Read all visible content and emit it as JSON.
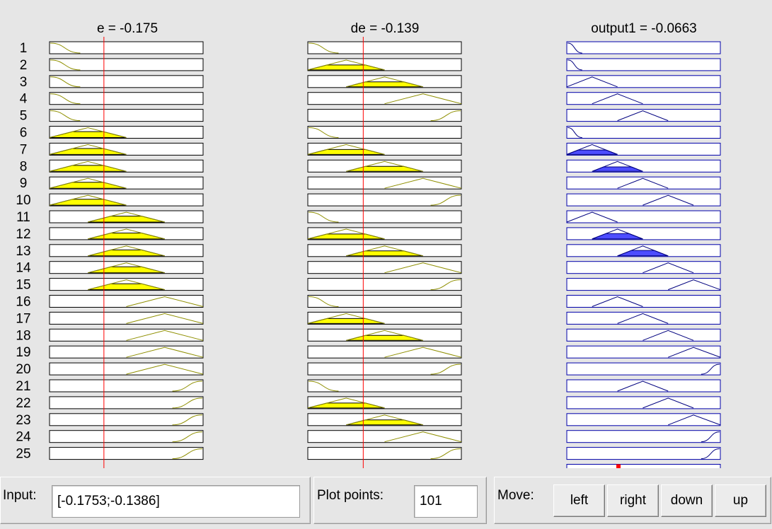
{
  "viewer": {
    "columns": [
      {
        "title": "e = -0.175",
        "kind": "input",
        "range": [
          -0.6,
          0.6
        ],
        "value": -0.175,
        "range_labels_partial": [
          "-0.6",
          "0.6"
        ]
      },
      {
        "title": "de = -0.139",
        "kind": "input",
        "range": [
          -0.5,
          0.5
        ],
        "value": -0.139,
        "range_labels_partial": [
          "-0.5",
          "0.5"
        ]
      },
      {
        "title": "output1 = -0.0663",
        "kind": "output",
        "value": -0.0663
      }
    ],
    "rule_numbers": [
      "1",
      "2",
      "3",
      "4",
      "5",
      "6",
      "7",
      "8",
      "9",
      "10",
      "11",
      "12",
      "13",
      "14",
      "15",
      "16",
      "17",
      "18",
      "19",
      "20",
      "21",
      "22",
      "23",
      "24",
      "25"
    ],
    "rules": [
      {
        "e": "zmf1",
        "de": "zmf1",
        "out": "z1",
        "fire": 0.0
      },
      {
        "e": "zmf1",
        "de": "tri2",
        "out": "z1",
        "fire": 0.0
      },
      {
        "e": "zmf1",
        "de": "tri3",
        "out": "t2",
        "fire": 0.0
      },
      {
        "e": "zmf1",
        "de": "tri4",
        "out": "t3",
        "fire": 0.0
      },
      {
        "e": "zmf1",
        "de": "smf5",
        "out": "t4",
        "fire": 0.0
      },
      {
        "e": "tri2",
        "de": "zmf1",
        "out": "z1",
        "fire": 0.0
      },
      {
        "e": "tri2",
        "de": "tri2",
        "out": "t2",
        "fire": 0.45
      },
      {
        "e": "tri2",
        "de": "tri3",
        "out": "t3",
        "fire": 0.45
      },
      {
        "e": "tri2",
        "de": "tri4",
        "out": "t4",
        "fire": 0.0
      },
      {
        "e": "tri2",
        "de": "smf5",
        "out": "t5",
        "fire": 0.0
      },
      {
        "e": "tri3",
        "de": "zmf1",
        "out": "t2",
        "fire": 0.0
      },
      {
        "e": "tri3",
        "de": "tri2",
        "out": "t3",
        "fire": 0.55
      },
      {
        "e": "tri3",
        "de": "tri3",
        "out": "t4",
        "fire": 0.55
      },
      {
        "e": "tri3",
        "de": "tri4",
        "out": "t5",
        "fire": 0.0
      },
      {
        "e": "tri3",
        "de": "smf5",
        "out": "t6",
        "fire": 0.0
      },
      {
        "e": "tri4",
        "de": "zmf1",
        "out": "t3",
        "fire": 0.0
      },
      {
        "e": "tri4",
        "de": "tri2",
        "out": "t4",
        "fire": 0.0
      },
      {
        "e": "tri4",
        "de": "tri3",
        "out": "t5",
        "fire": 0.0
      },
      {
        "e": "tri4",
        "de": "tri4",
        "out": "t6",
        "fire": 0.0
      },
      {
        "e": "tri4",
        "de": "smf5",
        "out": "s7",
        "fire": 0.0
      },
      {
        "e": "smf5",
        "de": "zmf1",
        "out": "t4",
        "fire": 0.0
      },
      {
        "e": "smf5",
        "de": "tri2",
        "out": "t5",
        "fire": 0.0
      },
      {
        "e": "smf5",
        "de": "tri3",
        "out": "t6",
        "fire": 0.0
      },
      {
        "e": "smf5",
        "de": "tri4",
        "out": "s7",
        "fire": 0.0
      },
      {
        "e": "smf5",
        "de": "smf5",
        "out": "s7",
        "fire": 0.0
      }
    ],
    "colors": {
      "input_curve": "#8f8f00",
      "input_fill": "#ffff00",
      "output_curve": "#00007f",
      "output_fill": "#4d4dff",
      "index_line": "#ff0000",
      "aggregate_marker": "#ff0000",
      "output_box_border": "#0000aa"
    }
  },
  "controls": {
    "input": {
      "label": "Input:",
      "value": "[-0.1753;-0.1386]"
    },
    "plot_points": {
      "label": "Plot points:",
      "value": "101"
    },
    "move": {
      "label": "Move:",
      "buttons": [
        "left",
        "right",
        "down",
        "up"
      ]
    }
  }
}
